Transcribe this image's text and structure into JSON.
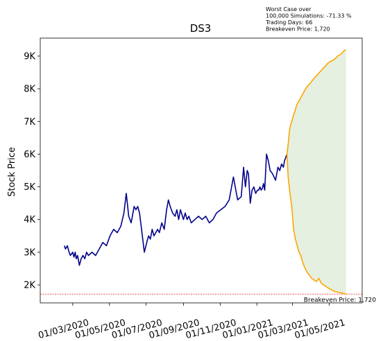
{
  "chart_data": {
    "type": "line",
    "title": "DS3",
    "xlabel": "",
    "ylabel": "Stock Price",
    "x_range": [
      "2020-01-07",
      "2021-06-25"
    ],
    "ylim": [
      1450,
      9550
    ],
    "grid": false,
    "x_ticks": [
      "01/03/2020",
      "01/05/2020",
      "01/07/2020",
      "01/09/2020",
      "01/11/2020",
      "01/01/2021",
      "01/03/2021",
      "01/05/2021"
    ],
    "x_tick_dates": [
      "2020-03-01",
      "2020-05-01",
      "2020-07-01",
      "2020-09-01",
      "2020-11-01",
      "2021-01-01",
      "2021-03-01",
      "2021-05-01"
    ],
    "y_ticks": [
      2000,
      3000,
      4000,
      5000,
      6000,
      7000,
      8000,
      9000
    ],
    "y_tick_labels": [
      "2K",
      "3K",
      "4K",
      "5K",
      "6K",
      "7K",
      "8K",
      "9K"
    ],
    "info_lines": [
      "Worst Case over",
      "100,000 Simulations: -71.33 %",
      "Trading Days: 66",
      "Breakeven Price: 1,720"
    ],
    "breakeven_label": "Breakeven Price: 1,720",
    "breakeven_price": 1720,
    "colors": {
      "historical": "#00008b",
      "simulation": "#ffa500",
      "fill": "#e5f0e0",
      "breakeven": "#e41a1c"
    },
    "series": [
      {
        "role": "historical",
        "x": [
          "2020-02-16",
          "2020-02-18",
          "2020-02-21",
          "2020-02-24",
          "2020-02-26",
          "2020-03-01",
          "2020-03-03",
          "2020-03-05",
          "2020-03-07",
          "2020-03-09",
          "2020-03-12",
          "2020-03-15",
          "2020-03-18",
          "2020-03-21",
          "2020-03-24",
          "2020-03-27",
          "2020-04-02",
          "2020-04-08",
          "2020-04-14",
          "2020-04-20",
          "2020-04-26",
          "2020-05-02",
          "2020-05-08",
          "2020-05-14",
          "2020-05-20",
          "2020-05-25",
          "2020-05-29",
          "2020-06-02",
          "2020-06-06",
          "2020-06-09",
          "2020-06-11",
          "2020-06-14",
          "2020-06-17",
          "2020-06-20",
          "2020-06-24",
          "2020-06-28",
          "2020-07-02",
          "2020-07-05",
          "2020-07-08",
          "2020-07-11",
          "2020-07-14",
          "2020-07-17",
          "2020-07-20",
          "2020-07-23",
          "2020-07-27",
          "2020-07-31",
          "2020-08-04",
          "2020-08-07",
          "2020-08-10",
          "2020-08-14",
          "2020-08-18",
          "2020-08-21",
          "2020-08-24",
          "2020-08-27",
          "2020-09-01",
          "2020-09-04",
          "2020-09-07",
          "2020-09-10",
          "2020-09-14",
          "2020-09-20",
          "2020-09-26",
          "2020-10-02",
          "2020-10-08",
          "2020-10-14",
          "2020-10-20",
          "2020-10-26",
          "2020-11-02",
          "2020-11-09",
          "2020-11-16",
          "2020-11-23",
          "2020-11-30",
          "2020-12-06",
          "2020-12-10",
          "2020-12-13",
          "2020-12-16",
          "2020-12-18",
          "2020-12-21",
          "2020-12-24",
          "2020-12-27",
          "2020-12-30",
          "2021-01-02",
          "2021-01-04",
          "2021-01-06",
          "2021-01-08",
          "2021-01-10",
          "2021-01-12",
          "2021-01-14",
          "2021-01-17",
          "2021-01-20",
          "2021-01-23",
          "2021-01-27",
          "2021-02-01",
          "2021-02-05",
          "2021-02-08",
          "2021-02-11",
          "2021-02-14",
          "2021-02-16",
          "2021-02-18",
          "2021-02-20"
        ],
        "values": [
          3200,
          3100,
          3200,
          3000,
          2900,
          3000,
          2850,
          3000,
          2800,
          2900,
          2600,
          2800,
          2900,
          2800,
          3000,
          2900,
          3000,
          2900,
          3100,
          3300,
          3200,
          3500,
          3700,
          3600,
          3800,
          4200,
          4800,
          4100,
          3900,
          4200,
          4400,
          4300,
          4400,
          4200,
          3600,
          3000,
          3300,
          3500,
          3400,
          3700,
          3500,
          3600,
          3700,
          3600,
          3900,
          3700,
          4300,
          4600,
          4400,
          4200,
          4100,
          4300,
          4000,
          4300,
          4000,
          4200,
          4000,
          4100,
          3900,
          4000,
          4100,
          4000,
          4100,
          3900,
          4000,
          4200,
          4300,
          4400,
          4600,
          5300,
          4600,
          4700,
          5600,
          5000,
          5500,
          5400,
          4500,
          4900,
          5000,
          4800,
          4900,
          4900,
          5000,
          4900,
          4950,
          5100,
          4900,
          6000,
          5800,
          5500,
          5400,
          5200,
          5600,
          5500,
          5700,
          5600,
          5800,
          5900,
          6000
        ]
      },
      {
        "role": "simulation-upper",
        "x": [
          "2021-02-20",
          "2021-02-22",
          "2021-02-24",
          "2021-02-26",
          "2021-02-28",
          "2021-03-03",
          "2021-03-05",
          "2021-03-08",
          "2021-03-11",
          "2021-03-14",
          "2021-03-17",
          "2021-03-20",
          "2021-03-23",
          "2021-03-27",
          "2021-04-01",
          "2021-04-05",
          "2021-04-10",
          "2021-04-15",
          "2021-04-20",
          "2021-04-25",
          "2021-04-30",
          "2021-05-05",
          "2021-05-10",
          "2021-05-15",
          "2021-05-20",
          "2021-05-25",
          "2021-05-29"
        ],
        "values": [
          6000,
          6300,
          6700,
          6900,
          7000,
          7200,
          7300,
          7500,
          7600,
          7700,
          7800,
          7900,
          8000,
          8100,
          8200,
          8300,
          8400,
          8500,
          8600,
          8700,
          8800,
          8850,
          8900,
          9000,
          9050,
          9150,
          9200
        ]
      },
      {
        "role": "simulation-lower",
        "x": [
          "2021-02-20",
          "2021-02-22",
          "2021-02-25",
          "2021-02-28",
          "2021-03-03",
          "2021-03-06",
          "2021-03-09",
          "2021-03-12",
          "2021-03-15",
          "2021-03-18",
          "2021-03-21",
          "2021-03-25",
          "2021-03-29",
          "2021-04-02",
          "2021-04-06",
          "2021-04-10",
          "2021-04-14",
          "2021-04-18",
          "2021-04-22",
          "2021-04-26",
          "2021-04-30",
          "2021-05-05",
          "2021-05-10",
          "2021-05-15",
          "2021-05-20",
          "2021-05-25",
          "2021-05-29"
        ],
        "values": [
          6000,
          5300,
          4800,
          4400,
          3700,
          3400,
          3200,
          3000,
          2900,
          2700,
          2550,
          2400,
          2300,
          2200,
          2150,
          2100,
          2200,
          2050,
          2000,
          1950,
          1900,
          1850,
          1800,
          1780,
          1760,
          1740,
          1720
        ]
      }
    ]
  }
}
